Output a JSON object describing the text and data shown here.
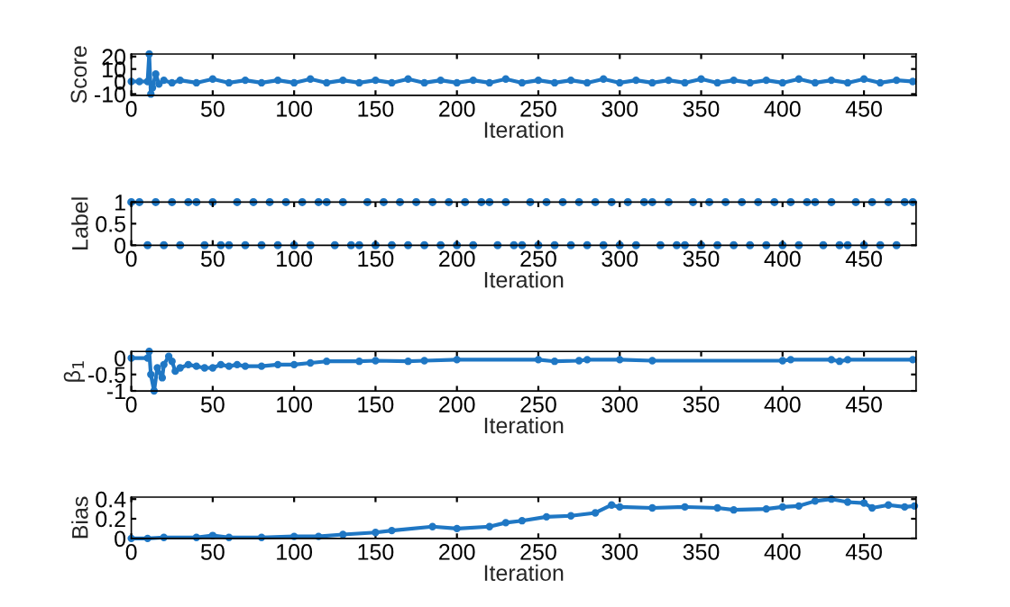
{
  "chart_data": [
    {
      "type": "line",
      "xlabel": "Iteration",
      "ylabel": "Score",
      "xlim": [
        0,
        482
      ],
      "xticks": [
        0,
        50,
        100,
        150,
        200,
        250,
        300,
        350,
        400,
        450
      ],
      "ylim": [
        -11,
        22
      ],
      "yticks": [
        -10,
        0,
        10,
        20
      ],
      "marker": "circle",
      "line_style": "solid",
      "grid": false,
      "series": [
        {
          "color": "#1f77c4",
          "x": [
            0,
            5,
            10,
            11,
            12,
            13,
            15,
            17,
            20,
            25,
            30,
            40,
            50,
            60,
            70,
            80,
            90,
            100,
            110,
            120,
            130,
            140,
            150,
            160,
            170,
            180,
            190,
            200,
            210,
            220,
            230,
            240,
            250,
            260,
            270,
            280,
            290,
            300,
            310,
            320,
            330,
            340,
            350,
            360,
            370,
            380,
            390,
            400,
            410,
            420,
            430,
            440,
            450,
            460,
            470,
            480
          ],
          "values": [
            0,
            0,
            0,
            22,
            -10,
            -5,
            6,
            -2,
            1,
            -1,
            1,
            -1,
            2,
            -1,
            1,
            -1,
            1,
            -1,
            2,
            -1,
            1,
            -1,
            1,
            -1,
            2,
            -1,
            1,
            -1,
            1,
            -1,
            2,
            -1,
            1,
            -1,
            1,
            -1,
            2,
            -1,
            1,
            -1,
            1,
            -1,
            2,
            -1,
            1,
            -1,
            1,
            -1,
            2,
            -1,
            1,
            -1,
            2,
            -1,
            1,
            0
          ]
        }
      ]
    },
    {
      "type": "scatter",
      "xlabel": "Iteration",
      "ylabel": "Label",
      "xlim": [
        0,
        482
      ],
      "xticks": [
        0,
        50,
        100,
        150,
        200,
        250,
        300,
        350,
        400,
        450
      ],
      "ylim": [
        0,
        1
      ],
      "yticks": [
        0,
        0.5,
        1
      ],
      "marker": "circle",
      "grid": false,
      "series": [
        {
          "color": "#1f77c4",
          "x": [
            0,
            5,
            10,
            15,
            20,
            25,
            30,
            35,
            40,
            45,
            50,
            55,
            60,
            65,
            70,
            75,
            80,
            85,
            90,
            95,
            100,
            105,
            110,
            115,
            120,
            125,
            130,
            135,
            140,
            145,
            150,
            155,
            160,
            165,
            170,
            175,
            180,
            185,
            190,
            195,
            200,
            205,
            210,
            215,
            220,
            225,
            230,
            235,
            240,
            245,
            250,
            255,
            260,
            265,
            270,
            275,
            280,
            285,
            290,
            295,
            300,
            305,
            310,
            315,
            320,
            325,
            330,
            335,
            340,
            345,
            350,
            355,
            360,
            365,
            370,
            375,
            380,
            385,
            390,
            395,
            400,
            405,
            410,
            415,
            420,
            425,
            430,
            435,
            440,
            445,
            450,
            455,
            460,
            465,
            470,
            475,
            480
          ],
          "values": [
            1,
            1,
            0,
            1,
            0,
            1,
            0,
            1,
            1,
            0,
            1,
            0,
            0,
            1,
            0,
            1,
            0,
            1,
            0,
            1,
            0,
            1,
            0,
            1,
            1,
            0,
            1,
            0,
            0,
            1,
            0,
            1,
            0,
            1,
            0,
            1,
            0,
            1,
            0,
            1,
            0,
            1,
            0,
            1,
            1,
            0,
            1,
            0,
            0,
            1,
            0,
            1,
            0,
            1,
            0,
            1,
            0,
            1,
            0,
            1,
            0,
            1,
            0,
            1,
            1,
            0,
            1,
            0,
            0,
            1,
            0,
            1,
            0,
            1,
            0,
            1,
            0,
            1,
            0,
            1,
            0,
            1,
            0,
            1,
            1,
            0,
            1,
            0,
            0,
            1,
            0,
            1,
            0,
            1,
            0,
            1,
            1
          ]
        }
      ]
    },
    {
      "type": "line",
      "xlabel": "Iteration",
      "ylabel": "β$_{1}$",
      "xlim": [
        0,
        482
      ],
      "xticks": [
        0,
        50,
        100,
        150,
        200,
        250,
        300,
        350,
        400,
        450
      ],
      "ylim": [
        -1,
        0.2
      ],
      "yticks": [
        -1,
        -0.5,
        0
      ],
      "marker": "circle",
      "line_style": "solid",
      "grid": false,
      "series": [
        {
          "color": "#1f77c4",
          "x": [
            0,
            10,
            11,
            12,
            14,
            16,
            19,
            20,
            23,
            25,
            27,
            30,
            35,
            40,
            45,
            50,
            55,
            60,
            65,
            70,
            80,
            90,
            100,
            110,
            120,
            140,
            150,
            170,
            180,
            200,
            250,
            260,
            275,
            280,
            300,
            320,
            400,
            405,
            430,
            435,
            440,
            480
          ],
          "values": [
            0,
            0,
            0.2,
            -0.5,
            -1,
            -0.3,
            -0.6,
            -0.2,
            0.05,
            -0.1,
            -0.4,
            -0.3,
            -0.2,
            -0.25,
            -0.3,
            -0.3,
            -0.2,
            -0.25,
            -0.2,
            -0.25,
            -0.25,
            -0.2,
            -0.2,
            -0.15,
            -0.1,
            -0.1,
            -0.08,
            -0.1,
            -0.08,
            -0.05,
            -0.05,
            -0.1,
            -0.08,
            -0.05,
            -0.05,
            -0.08,
            -0.08,
            -0.05,
            -0.05,
            -0.1,
            -0.05,
            -0.05
          ]
        }
      ]
    },
    {
      "type": "line",
      "xlabel": "Iteration",
      "ylabel": "Bias",
      "xlim": [
        0,
        482
      ],
      "xticks": [
        0,
        50,
        100,
        150,
        200,
        250,
        300,
        350,
        400,
        450
      ],
      "ylim": [
        0,
        0.42
      ],
      "yticks": [
        0,
        0.2,
        0.4
      ],
      "marker": "circle",
      "line_style": "solid",
      "grid": false,
      "series": [
        {
          "color": "#1f77c4",
          "x": [
            0,
            10,
            20,
            40,
            50,
            60,
            80,
            100,
            115,
            130,
            150,
            160,
            185,
            200,
            220,
            230,
            240,
            255,
            270,
            285,
            295,
            300,
            320,
            340,
            360,
            370,
            390,
            400,
            410,
            420,
            430,
            440,
            450,
            455,
            465,
            475,
            481
          ],
          "values": [
            0,
            0,
            0.01,
            0.01,
            0.03,
            0.01,
            0.01,
            0.02,
            0.02,
            0.04,
            0.06,
            0.08,
            0.12,
            0.1,
            0.12,
            0.16,
            0.18,
            0.22,
            0.23,
            0.26,
            0.34,
            0.32,
            0.31,
            0.32,
            0.31,
            0.29,
            0.3,
            0.32,
            0.33,
            0.38,
            0.4,
            0.37,
            0.36,
            0.31,
            0.34,
            0.32,
            0.33
          ]
        }
      ]
    }
  ]
}
